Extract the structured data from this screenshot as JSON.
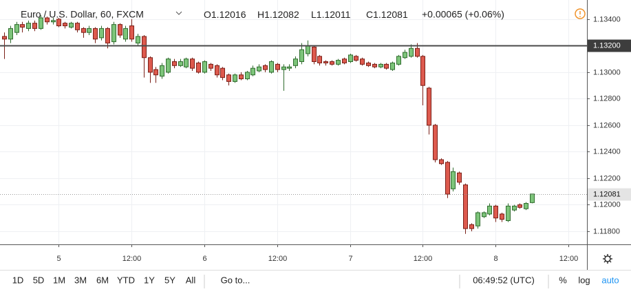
{
  "chart_data": {
    "type": "candlestick",
    "header": {
      "symbol": "Euro / U.S. Dollar, 60, FXCM",
      "ohlc": [
        {
          "key": "O",
          "value": "1.12016"
        },
        {
          "key": "H",
          "value": "1.12082"
        },
        {
          "key": "L",
          "value": "1.12011"
        },
        {
          "key": "C",
          "value": "1.12081"
        }
      ],
      "change": "+0.00065 (+0.06%)"
    },
    "open": [
      1.1327,
      1.1325,
      1.133,
      1.1336,
      1.1333,
      1.1337,
      1.1333,
      1.1341,
      1.1338,
      1.134,
      1.1337,
      1.1334,
      1.1337,
      1.1333,
      1.133,
      1.1333,
      1.1326,
      1.1333,
      1.1323,
      1.1336,
      1.1325,
      1.1335,
      1.1322,
      1.1327,
      1.1311,
      1.1302,
      1.1297,
      1.13,
      1.1308,
      1.1305,
      1.1304,
      1.131,
      1.1307,
      1.13,
      1.1306,
      1.1305,
      1.1303,
      1.1298,
      1.1293,
      1.1298,
      1.1295,
      1.1298,
      1.1301,
      1.1305,
      1.13,
      1.1306,
      1.1302,
      1.1303,
      1.1305,
      1.1308,
      1.1314,
      1.1319,
      1.1312,
      1.1308,
      1.1308,
      1.1306,
      1.131,
      1.1308,
      1.1312,
      1.131,
      1.1307,
      1.1306,
      1.1304,
      1.1306,
      1.1302,
      1.1306,
      1.1311,
      1.1312,
      1.1318,
      1.1312,
      1.1288,
      1.126,
      1.1234,
      1.1232,
      1.1212,
      1.1224,
      1.1215,
      1.1185,
      1.1184,
      1.1191,
      1.1193,
      1.1199,
      1.1193,
      1.1188,
      1.1196,
      1.12,
      1.1197,
      1.12016
    ],
    "high": [
      1.133,
      1.1335,
      1.1338,
      1.1338,
      1.1339,
      1.1339,
      1.1343,
      1.1342,
      1.1341,
      1.1341,
      1.1338,
      1.1338,
      1.1338,
      1.1334,
      1.1335,
      1.1334,
      1.1335,
      1.1334,
      1.1338,
      1.1337,
      1.1335,
      1.134,
      1.1329,
      1.1328,
      1.1312,
      1.1304,
      1.1307,
      1.1311,
      1.131,
      1.131,
      1.1311,
      1.1311,
      1.1308,
      1.1309,
      1.1307,
      1.1306,
      1.1304,
      1.1299,
      1.1299,
      1.13,
      1.1301,
      1.1305,
      1.1306,
      1.1306,
      1.1309,
      1.1307,
      1.1306,
      1.1306,
      1.1312,
      1.1322,
      1.1324,
      1.132,
      1.1313,
      1.1309,
      1.1309,
      1.131,
      1.1311,
      1.1314,
      1.1313,
      1.1311,
      1.1308,
      1.1307,
      1.1307,
      1.1307,
      1.1308,
      1.1313,
      1.1317,
      1.1321,
      1.1322,
      1.1313,
      1.1289,
      1.1261,
      1.1235,
      1.1233,
      1.1228,
      1.1225,
      1.1216,
      1.1186,
      1.1195,
      1.1195,
      1.1201,
      1.12,
      1.1194,
      1.1201,
      1.12,
      1.1201,
      1.1202,
      1.12082
    ],
    "low": [
      1.131,
      1.1322,
      1.1328,
      1.133,
      1.1331,
      1.1331,
      1.1332,
      1.1336,
      1.1336,
      1.1334,
      1.1333,
      1.1333,
      1.133,
      1.1326,
      1.1328,
      1.1322,
      1.1324,
      1.1318,
      1.1321,
      1.1326,
      1.1323,
      1.1323,
      1.132,
      1.1296,
      1.1292,
      1.1292,
      1.1295,
      1.1299,
      1.1303,
      1.1304,
      1.1303,
      1.1301,
      1.1299,
      1.1299,
      1.1301,
      1.1296,
      1.1294,
      1.129,
      1.1292,
      1.1294,
      1.1294,
      1.1297,
      1.13,
      1.13,
      1.1299,
      1.13,
      1.1286,
      1.1301,
      1.1303,
      1.1306,
      1.1312,
      1.1306,
      1.1305,
      1.1305,
      1.1305,
      1.1305,
      1.1306,
      1.1307,
      1.1308,
      1.1305,
      1.1304,
      1.1303,
      1.1303,
      1.1302,
      1.1301,
      1.1305,
      1.131,
      1.1311,
      1.1311,
      1.1275,
      1.1253,
      1.1232,
      1.123,
      1.1205,
      1.121,
      1.1215,
      1.1178,
      1.118,
      1.1182,
      1.119,
      1.1192,
      1.1187,
      1.1187,
      1.1187,
      1.1195,
      1.1197,
      1.1196,
      1.12011
    ],
    "close": [
      1.1325,
      1.1333,
      1.1336,
      1.1334,
      1.1337,
      1.1333,
      1.1341,
      1.1338,
      1.1339,
      1.1335,
      1.1335,
      1.1337,
      1.1332,
      1.133,
      1.1333,
      1.1325,
      1.1333,
      1.1322,
      1.1336,
      1.1328,
      1.1333,
      1.1325,
      1.1327,
      1.1311,
      1.13,
      1.1298,
      1.1305,
      1.131,
      1.1305,
      1.1308,
      1.131,
      1.1303,
      1.13,
      1.1308,
      1.1303,
      1.1298,
      1.1296,
      1.1293,
      1.1298,
      1.1295,
      1.13,
      1.1303,
      1.1304,
      1.1302,
      1.1308,
      1.1302,
      1.1304,
      1.1304,
      1.131,
      1.1317,
      1.132,
      1.1308,
      1.1307,
      1.1307,
      1.1306,
      1.1309,
      1.1307,
      1.1313,
      1.1309,
      1.1306,
      1.1305,
      1.1304,
      1.1306,
      1.1303,
      1.1307,
      1.1312,
      1.1315,
      1.1318,
      1.1312,
      1.129,
      1.126,
      1.1234,
      1.1231,
      1.1208,
      1.1225,
      1.1217,
      1.1182,
      1.1182,
      1.1194,
      1.1194,
      1.1199,
      1.119,
      1.1189,
      1.1199,
      1.1199,
      1.1198,
      1.1201,
      1.12081
    ],
    "up_color": "#7dc47a",
    "up_border": "#2e6b2c",
    "down_color": "#dd5a4e",
    "down_border": "#7a1e16",
    "xlim": [
      -0.68,
      96.07
    ],
    "xticks": [
      {
        "value": 9,
        "label": "5"
      },
      {
        "value": 21,
        "label": "12:00"
      },
      {
        "value": 33,
        "label": "6"
      },
      {
        "value": 45,
        "label": "12:00"
      },
      {
        "value": 57,
        "label": "7"
      },
      {
        "value": 69,
        "label": "12:00"
      },
      {
        "value": 81,
        "label": "8"
      },
      {
        "value": 93,
        "label": "12:00"
      }
    ],
    "ylim": [
      1.11701,
      1.13545
    ],
    "yticks": [
      {
        "value": 1.134,
        "label": "1.13400"
      },
      {
        "value": 1.132,
        "label": "1.13200"
      },
      {
        "value": 1.13,
        "label": "1.13000"
      },
      {
        "value": 1.128,
        "label": "1.12800"
      },
      {
        "value": 1.126,
        "label": "1.12600"
      },
      {
        "value": 1.124,
        "label": "1.12400"
      },
      {
        "value": 1.122,
        "label": "1.12200"
      },
      {
        "value": 1.12,
        "label": "1.12000"
      },
      {
        "value": 1.118,
        "label": "1.11800"
      }
    ],
    "grid": true,
    "hline": {
      "value": 1.132,
      "label": "1.13200"
    },
    "last_price": {
      "value": 1.12081,
      "label": "1.12081"
    },
    "toolbar": {
      "ranges": [
        "1D",
        "5D",
        "1M",
        "3M",
        "6M",
        "YTD",
        "1Y",
        "5Y",
        "All"
      ],
      "goto": "Go to...",
      "clock": "06:49:52 (UTC)",
      "options": [
        "%",
        "log",
        "auto"
      ]
    }
  }
}
